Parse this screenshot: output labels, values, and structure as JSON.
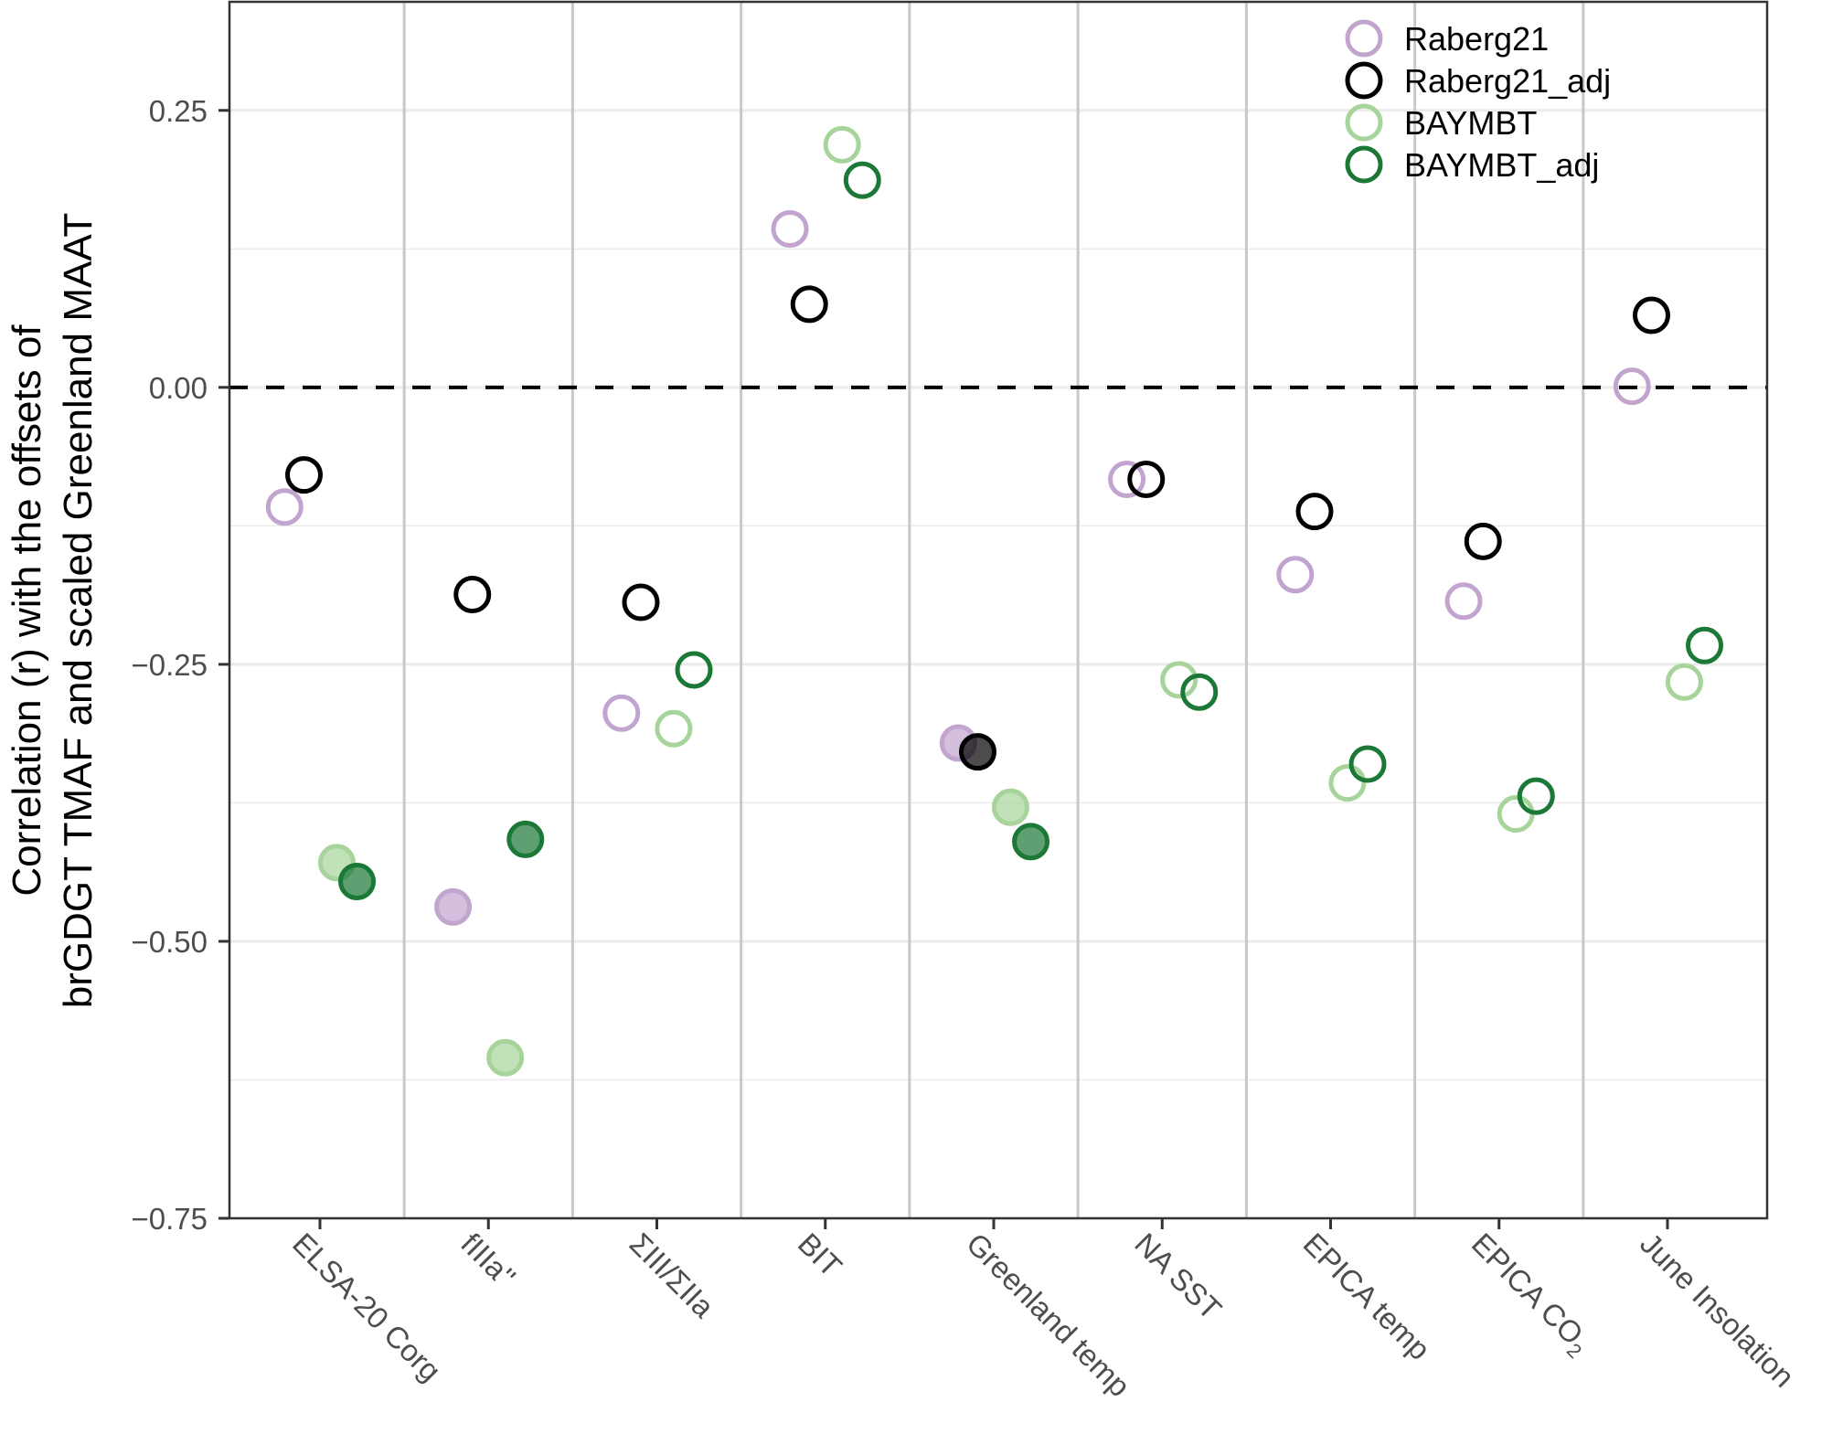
{
  "chart_data": {
    "type": "scatter",
    "title": "",
    "xlabel": "",
    "ylabel_lines": [
      "Correlation (r) with the offsets of",
      "brGDGT TMAF and scaled Greenland MAAT"
    ],
    "categories": [
      "ELSA-20 Corg",
      "fIIIa''",
      "ΣIII/ΣIIa",
      "BIT",
      "Greenland temp",
      "NA SST",
      "EPICA temp",
      "EPICA CO",
      "June Insolation"
    ],
    "category_subscripts": [
      "",
      "",
      "",
      "",
      "",
      "",
      "",
      "2",
      ""
    ],
    "ylim": [
      -0.75,
      0.348
    ],
    "yticks": [
      0.25,
      0.0,
      -0.25,
      -0.5,
      -0.75
    ],
    "ytick_labels": [
      "0.25",
      "0.00",
      "−0.25",
      "−0.50",
      "−0.75"
    ],
    "reference_line": {
      "y": 0,
      "style": "dashed",
      "color": "#000000"
    },
    "grid": true,
    "legend_position": "top-right",
    "filled_meaning": "filled markers drawn with translucent fill; open markers hollow",
    "series": [
      {
        "name": "Raberg21",
        "color": "#c2a5cf",
        "values": [
          -0.108,
          -0.469,
          -0.294,
          0.143,
          -0.321,
          -0.083,
          -0.169,
          -0.193,
          0.001
        ],
        "filled": [
          false,
          true,
          false,
          false,
          true,
          false,
          false,
          false,
          false
        ]
      },
      {
        "name": "Raberg21_adj",
        "color": "#000000",
        "values": [
          -0.079,
          -0.187,
          -0.194,
          0.075,
          -0.329,
          -0.083,
          -0.112,
          -0.139,
          0.065
        ],
        "filled": [
          false,
          false,
          false,
          false,
          true,
          false,
          false,
          false,
          false
        ]
      },
      {
        "name": "BAYMBT",
        "color": "#a6d49a",
        "values": [
          -0.429,
          -0.605,
          -0.308,
          0.219,
          -0.379,
          -0.264,
          -0.357,
          -0.385,
          -0.266
        ],
        "filled": [
          true,
          true,
          false,
          false,
          true,
          false,
          false,
          false,
          false
        ]
      },
      {
        "name": "BAYMBT_adj",
        "color": "#1b7837",
        "values": [
          -0.446,
          -0.408,
          -0.255,
          0.187,
          -0.41,
          -0.275,
          -0.34,
          -0.369,
          -0.233
        ],
        "filled": [
          true,
          true,
          false,
          false,
          true,
          false,
          false,
          false,
          false
        ]
      }
    ]
  }
}
